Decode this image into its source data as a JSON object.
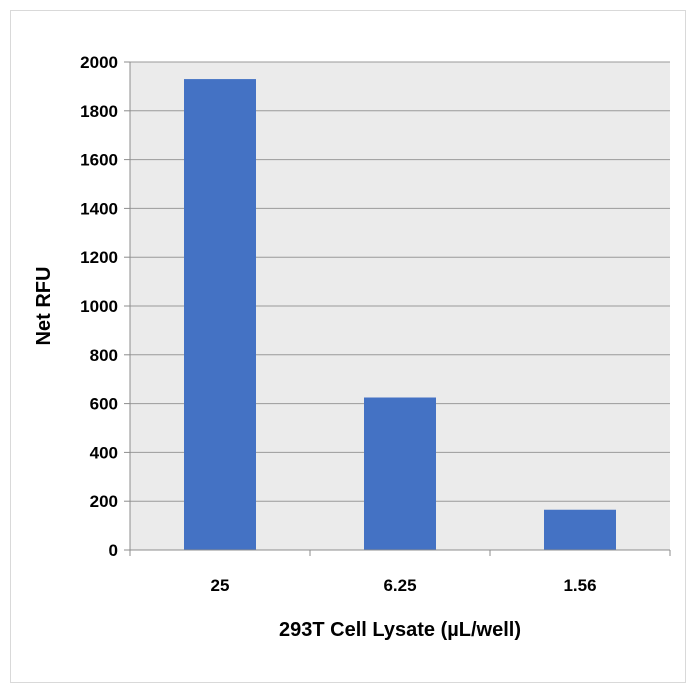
{
  "chart_data": {
    "type": "bar",
    "title": "",
    "xlabel": "293T Cell Lysate (µL/well)",
    "ylabel": "Net RFU",
    "categories": [
      "25",
      "6.25",
      "1.56"
    ],
    "values": [
      1930,
      625,
      165
    ],
    "ylim": [
      0,
      2000
    ],
    "yticks": [
      0,
      200,
      400,
      600,
      800,
      1000,
      1200,
      1400,
      1600,
      1800,
      2000
    ],
    "grid": true,
    "legend": "none",
    "colors": {
      "bar": "#4472c4",
      "plot_area": "#ebebeb",
      "gridline": "#9a9a9a",
      "axis": "#8c8c8c"
    }
  }
}
